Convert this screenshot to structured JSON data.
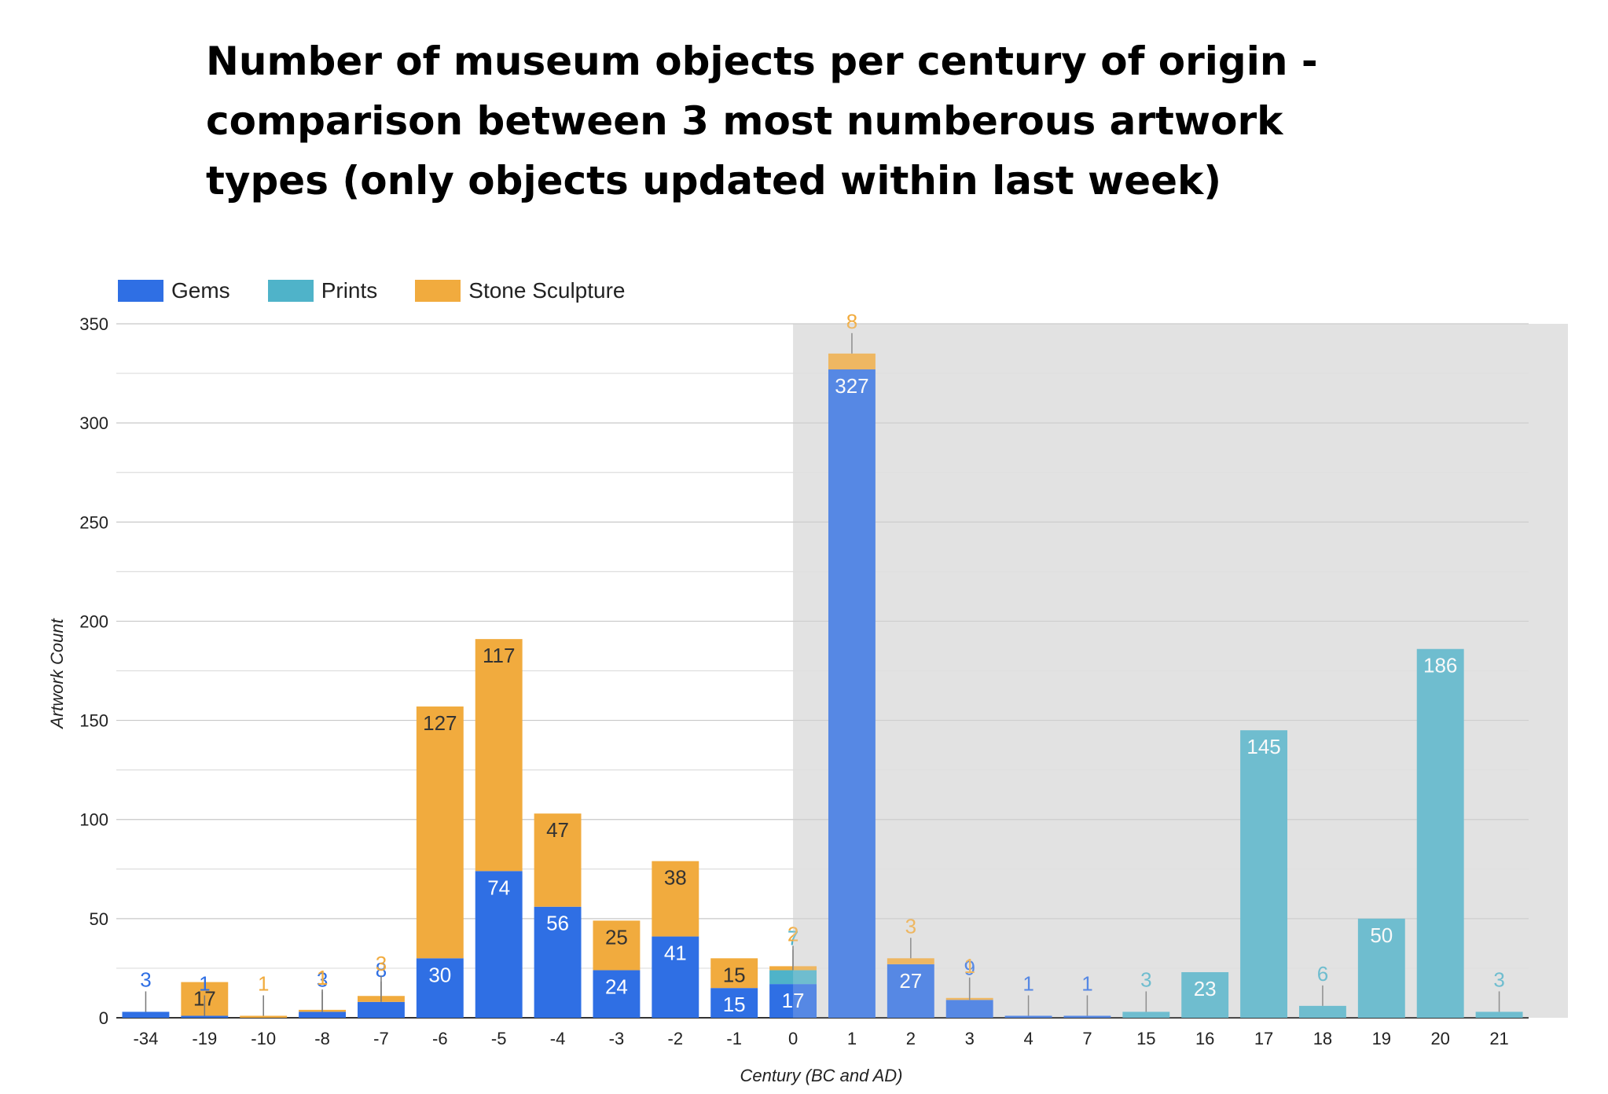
{
  "chart_data": {
    "type": "bar",
    "stacked": true,
    "title": "Number of museum objects per century of origin - comparison between 3 most numberous artwork types (only objects updated within last week)",
    "xlabel": "Century (BC and AD)",
    "ylabel": "Artwork Count",
    "ylim": [
      0,
      350
    ],
    "yticks": [
      0,
      50,
      100,
      150,
      200,
      250,
      300,
      350
    ],
    "grid": true,
    "legend_position": "top-left",
    "highlight_region": {
      "from_category": "0",
      "to_end": true,
      "color": "#e2e2e2"
    },
    "categories": [
      "-34",
      "-19",
      "-10",
      "-8",
      "-7",
      "-6",
      "-5",
      "-4",
      "-3",
      "-2",
      "-1",
      "0",
      "1",
      "2",
      "3",
      "4",
      "7",
      "15",
      "16",
      "17",
      "18",
      "19",
      "20",
      "21"
    ],
    "series": [
      {
        "name": "Gems",
        "color": "#2f6fe4",
        "values": [
          3,
          1,
          0,
          3,
          8,
          30,
          74,
          56,
          24,
          41,
          15,
          17,
          327,
          27,
          9,
          1,
          1,
          0,
          0,
          0,
          0,
          0,
          0,
          0
        ]
      },
      {
        "name": "Prints",
        "color": "#4fb3c9",
        "values": [
          0,
          0,
          0,
          0,
          0,
          0,
          0,
          0,
          0,
          0,
          0,
          7,
          0,
          0,
          0,
          0,
          0,
          3,
          23,
          145,
          6,
          50,
          186,
          3
        ]
      },
      {
        "name": "Stone Sculpture",
        "color": "#f1ab3e",
        "values": [
          0,
          17,
          1,
          1,
          3,
          127,
          117,
          47,
          25,
          38,
          15,
          2,
          8,
          3,
          1,
          0,
          0,
          0,
          0,
          0,
          0,
          0,
          0,
          0
        ]
      }
    ]
  }
}
